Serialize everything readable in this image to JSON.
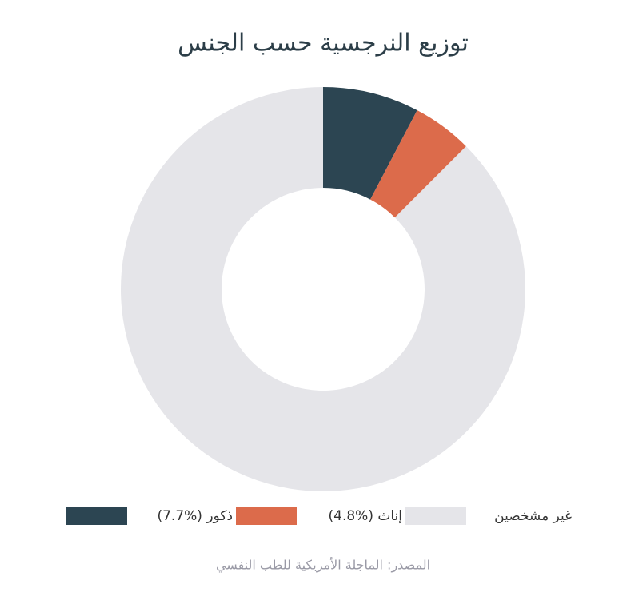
{
  "chart_data": {
    "type": "pie",
    "title": "توزيع النرجسية حسب الجنس",
    "categories": [
      "ذكور (%7.7)",
      "إناث (%4.8)",
      "غير مشخصين"
    ],
    "values": [
      7.7,
      4.8,
      87.5
    ],
    "colors": [
      "#2c4552",
      "#dc6b4b",
      "#e5e5e9"
    ],
    "source": "المصدر: الماجلة الأمريكية للطب النفسي"
  }
}
